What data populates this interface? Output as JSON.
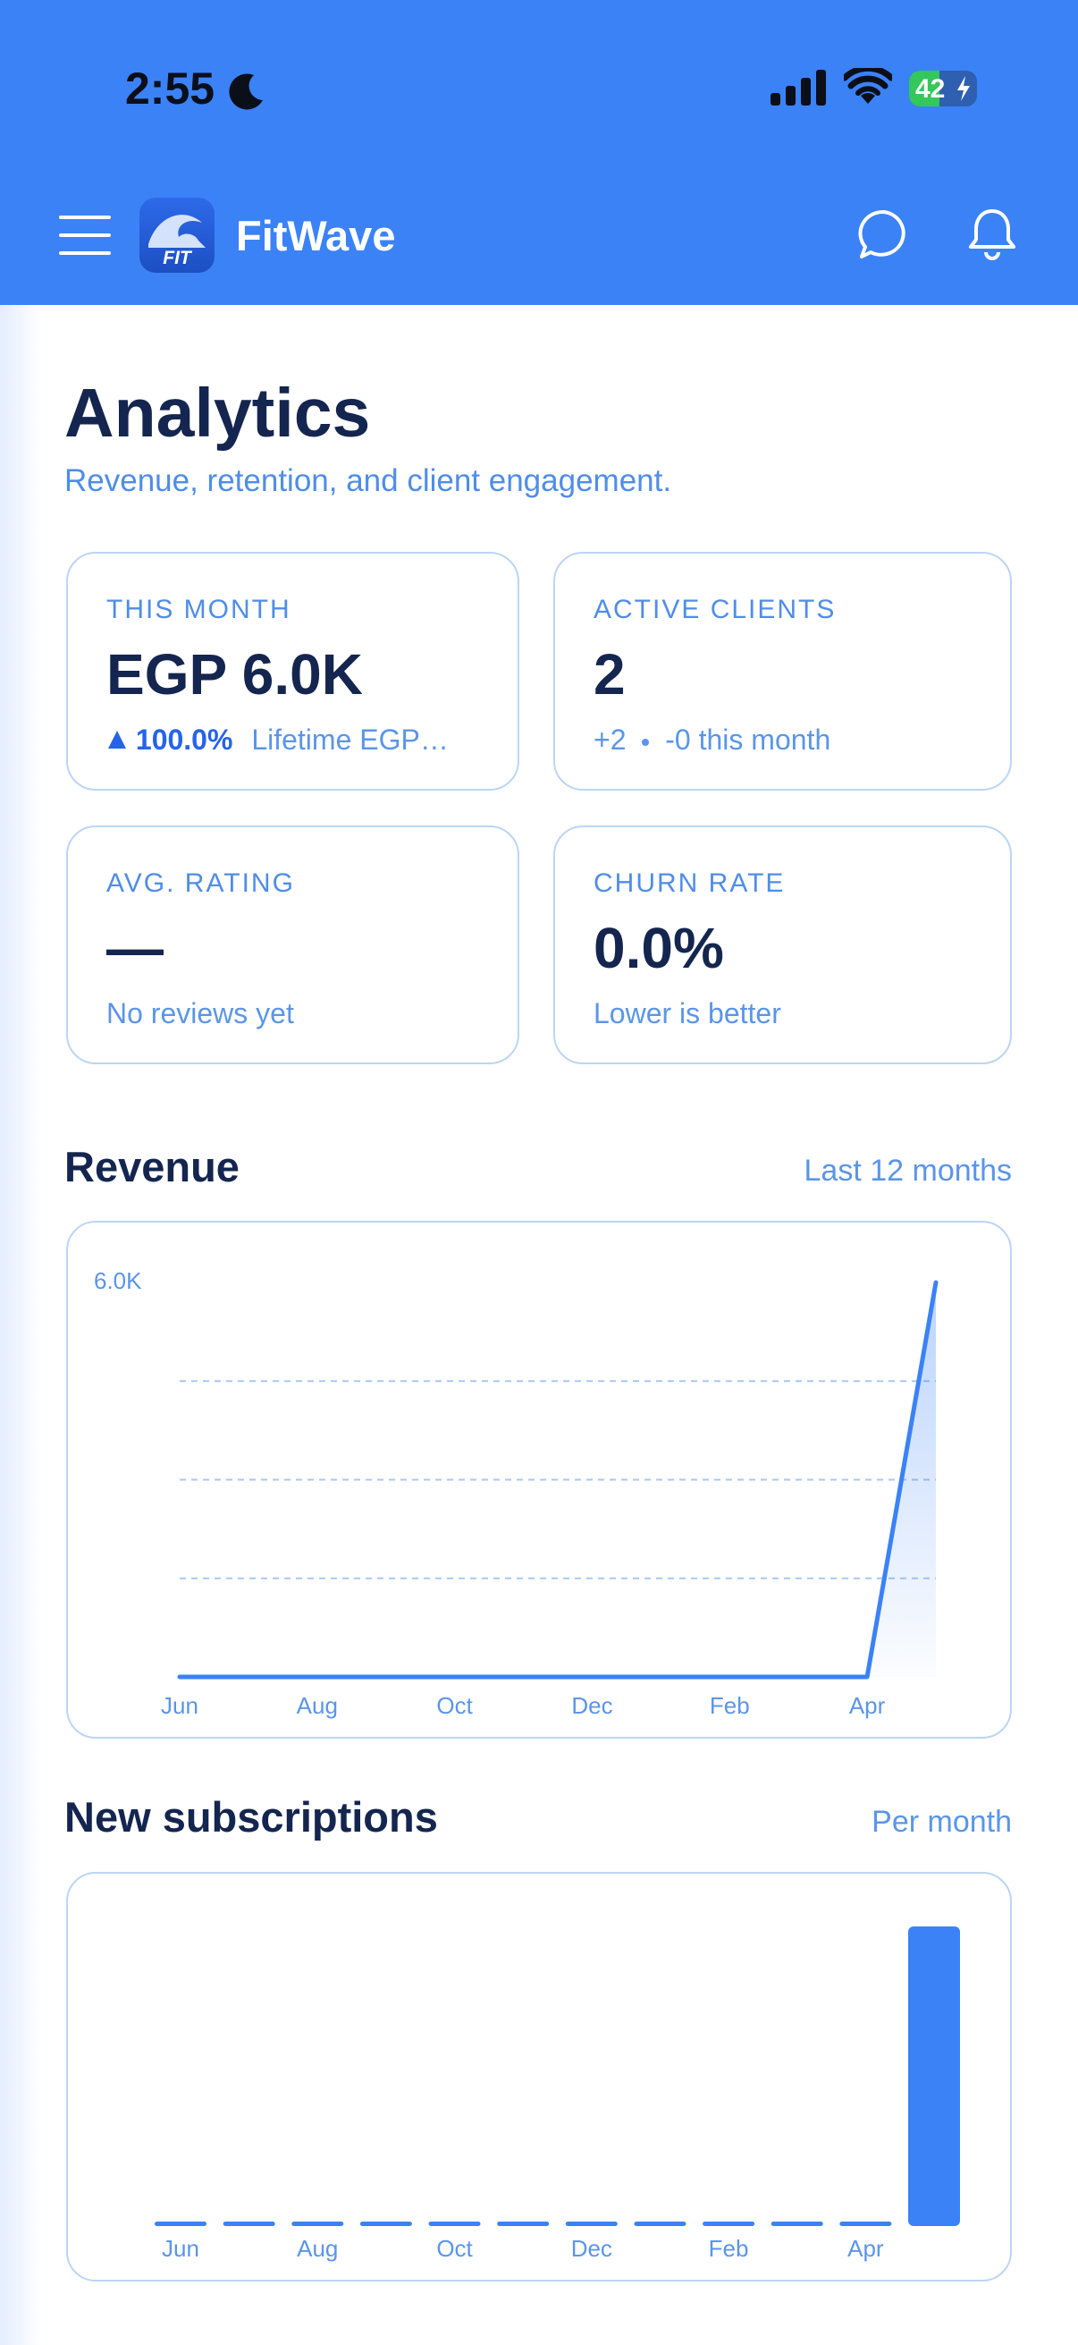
{
  "status_bar": {
    "time": "2:55",
    "battery": "42"
  },
  "header": {
    "app_name": "FitWave",
    "logo_text": "FIT"
  },
  "page": {
    "title": "Analytics",
    "subtitle": "Revenue, retention, and client engagement."
  },
  "cards": [
    {
      "label": "THIS MONTH",
      "value": "EGP 6.0K",
      "change": "100.0%",
      "note": "Lifetime EGP…"
    },
    {
      "label": "ACTIVE CLIENTS",
      "value": "2",
      "added": "+2",
      "note": "-0 this month"
    },
    {
      "label": "AVG. RATING",
      "value": "—",
      "note": "No reviews yet"
    },
    {
      "label": "CHURN RATE",
      "value": "0.0%",
      "note": "Lower is better"
    }
  ],
  "revenue": {
    "title": "Revenue",
    "period": "Last 12 months",
    "chart": {
      "type": "line",
      "categories": [
        "Jun",
        null,
        "Aug",
        null,
        "Oct",
        null,
        "Dec",
        null,
        "Feb",
        null,
        "Apr",
        null
      ],
      "values": [
        0,
        0,
        0,
        0,
        0,
        0,
        0,
        0,
        0,
        0,
        0,
        6000
      ],
      "color": "#3b82f6",
      "ylim": [
        0,
        6000
      ],
      "yticks": [
        {
          "value": 6000,
          "label": "6.0K"
        }
      ],
      "gridlines": [
        1500,
        3000,
        4500
      ]
    }
  },
  "subscriptions": {
    "title": "New subscriptions",
    "period": "Per month",
    "chart": {
      "type": "bar",
      "categories": [
        "Jun",
        null,
        "Aug",
        null,
        "Oct",
        null,
        "Dec",
        null,
        "Feb",
        null,
        "Apr",
        null
      ],
      "values": [
        0,
        0,
        0,
        0,
        0,
        0,
        0,
        0,
        0,
        0,
        0,
        2
      ],
      "color": "#3b82f6"
    }
  }
}
